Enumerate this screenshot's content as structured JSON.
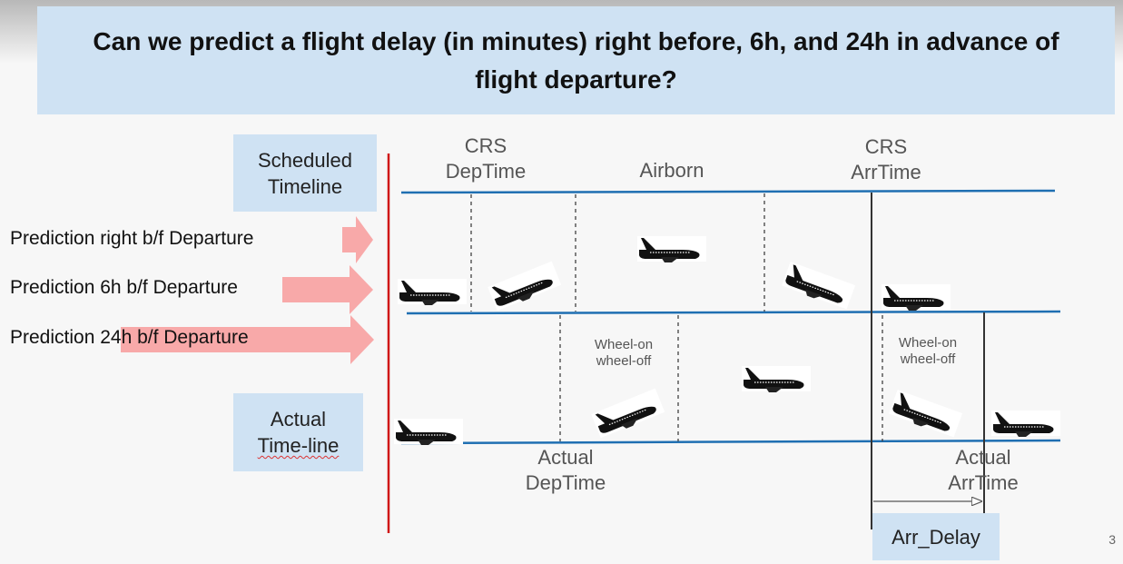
{
  "title": "Can we predict a flight delay (in minutes) right before, 6h, and 24h in advance of flight departure?",
  "scheduled_box": {
    "line1": "Scheduled",
    "line2": "Timeline"
  },
  "actual_box": {
    "line1": "Actual",
    "line2": "Time-line"
  },
  "predictions": [
    "Prediction right b/f Departure",
    "Prediction 6h b/f Departure",
    "Prediction 24h b/f Departure"
  ],
  "labels": {
    "crs_dep": {
      "line1": "CRS",
      "line2": "DepTime"
    },
    "airborn": "Airborn",
    "crs_arr": {
      "line1": "CRS",
      "line2": "ArrTime"
    },
    "wheel_left": {
      "line1": "Wheel-on",
      "line2": "wheel-off"
    },
    "wheel_right": {
      "line1": "Wheel-on",
      "line2": "wheel-off"
    },
    "actual_dep": {
      "line1": "Actual",
      "line2": "DepTime"
    },
    "actual_arr": {
      "line1": "Actual",
      "line2": "ArrTime"
    },
    "arr_delay": "Arr_Delay"
  },
  "page_number": "3",
  "colors": {
    "timeline": "#1f6fb2",
    "divider": "#d01818",
    "arrow": "#f8a9a9",
    "box": "#cfe2f3"
  },
  "icons": [
    "airplane-icon"
  ]
}
